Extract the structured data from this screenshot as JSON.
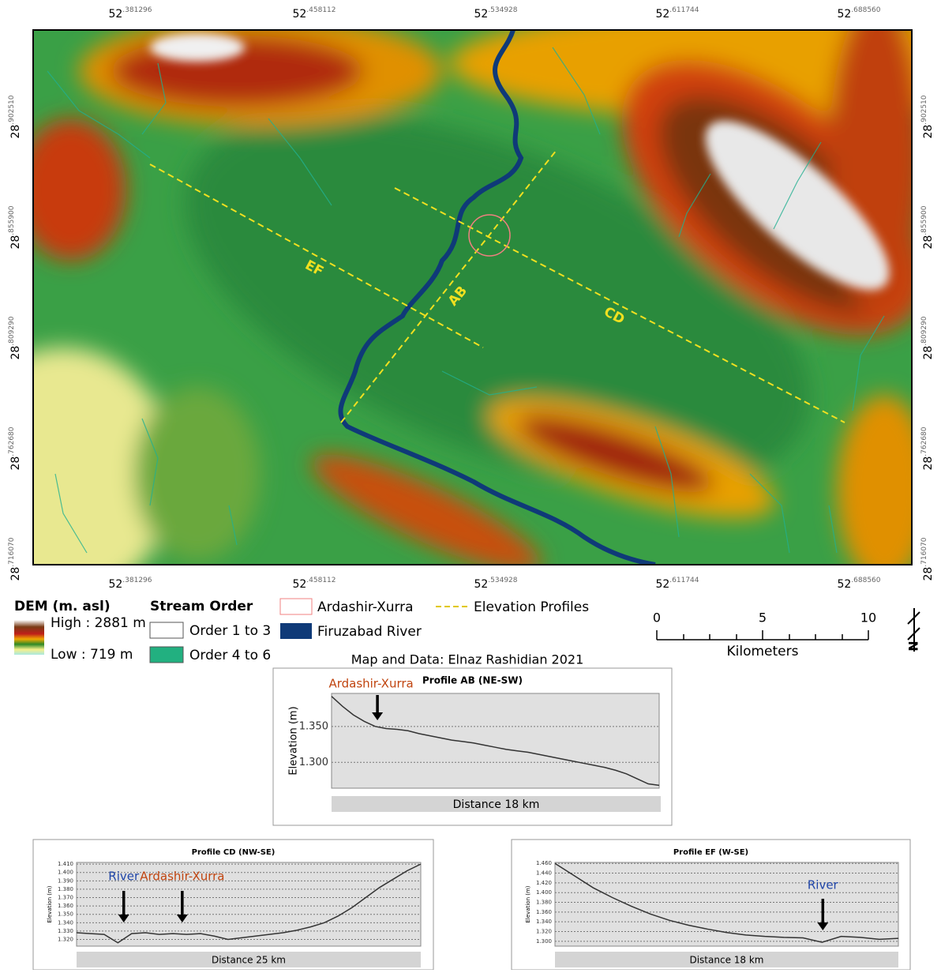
{
  "map": {
    "top_labels": [
      {
        "deg": "52",
        "frac": ".381296"
      },
      {
        "deg": "52",
        "frac": ".458112"
      },
      {
        "deg": "52",
        "frac": ".534928"
      },
      {
        "deg": "52",
        "frac": ".611744"
      },
      {
        "deg": "52",
        "frac": ".688560"
      }
    ],
    "bottom_labels": [
      {
        "deg": "52",
        "frac": ".381296"
      },
      {
        "deg": "52",
        "frac": ".458112"
      },
      {
        "deg": "52",
        "frac": ".534928"
      },
      {
        "deg": "52",
        "frac": ".611744"
      },
      {
        "deg": "52",
        "frac": ".688560"
      }
    ],
    "left_labels": [
      {
        "deg": "28",
        "frac": ".902510"
      },
      {
        "deg": "28",
        "frac": ".855900"
      },
      {
        "deg": "28",
        "frac": ".809290"
      },
      {
        "deg": "28",
        "frac": ".762680"
      },
      {
        "deg": "28",
        "frac": ".716070"
      }
    ],
    "right_labels": [
      {
        "deg": "28",
        "frac": ".902510"
      },
      {
        "deg": "28",
        "frac": ".855900"
      },
      {
        "deg": "28",
        "frac": ".809290"
      },
      {
        "deg": "28",
        "frac": ".762680"
      },
      {
        "deg": "28",
        "frac": ".716070"
      }
    ],
    "profile_labels": [
      "EF",
      "AB",
      "CD"
    ]
  },
  "legend": {
    "dem_title": "DEM (m. asl)",
    "dem_high": "High : 2881 m",
    "dem_low": "Low : 719 m",
    "stream_title": "Stream Order",
    "stream_low": "Order 1 to 3",
    "stream_high": "Order 4 to 6",
    "site": "Ardashir-Xurra",
    "river": "Firuzabad River",
    "profiles": "Elevation Profiles"
  },
  "scale": {
    "labels": [
      "0",
      "5",
      "10"
    ],
    "unit": "Kilometers"
  },
  "north": "N",
  "credit": "Map and Data: Elnaz Rashidian 2021",
  "chart_data": [
    {
      "type": "line",
      "title": "Profile AB (NE-SW)",
      "y_label": "Elevation (m)",
      "x_label": "Distance 18 km",
      "color": "#333333",
      "annotations": [
        {
          "text": "Ardashir-Xurra",
          "color": "#c0440f"
        }
      ],
      "x": [
        0,
        0.6,
        1.2,
        1.8,
        2.4,
        3,
        3.6,
        4.2,
        4.8,
        5.4,
        6,
        6.6,
        7.2,
        7.8,
        8.4,
        9,
        9.6,
        10.2,
        10.8,
        11.4,
        12,
        12.6,
        13.2,
        13.8,
        14.4,
        15,
        15.6,
        16.2,
        16.8,
        17.4,
        18
      ],
      "values": [
        1392,
        1378,
        1366,
        1357,
        1350,
        1347,
        1346,
        1344,
        1340,
        1337,
        1334,
        1331,
        1329,
        1327,
        1324,
        1321,
        1318,
        1316,
        1314,
        1311,
        1308,
        1305,
        1302,
        1299,
        1296,
        1293,
        1289,
        1284,
        1277,
        1270,
        1268
      ],
      "xlim": [
        0,
        18
      ],
      "ylim": [
        1264,
        1396
      ],
      "yticks": [
        {
          "value": 1300,
          "label": "1.300"
        },
        {
          "value": 1350,
          "label": "1.350"
        }
      ]
    },
    {
      "type": "line",
      "title": "Profile CD (NW-SE)",
      "y_label": "Elevation (m)",
      "x_label": "Distance 25 km",
      "color": "#333333",
      "annotations": [
        {
          "text": "River",
          "color": "#1f45a8"
        },
        {
          "text": "Ardashir-Xurra",
          "color": "#c0440f"
        }
      ],
      "x": [
        0,
        1,
        2,
        3,
        4,
        5,
        6,
        7,
        8,
        9,
        10,
        11,
        12,
        13,
        14,
        15,
        16,
        17,
        18,
        19,
        20,
        21,
        22,
        23,
        24,
        25
      ],
      "values": [
        1328,
        1327,
        1326,
        1316,
        1327,
        1328,
        1326,
        1327,
        1326,
        1327,
        1324,
        1320,
        1322,
        1324,
        1326,
        1328,
        1331,
        1335,
        1340,
        1348,
        1358,
        1370,
        1382,
        1392,
        1402,
        1410
      ],
      "xlim": [
        0,
        25
      ],
      "ylim": [
        1312,
        1412
      ],
      "yticks": [
        {
          "value": 1320,
          "label": "1.320"
        },
        {
          "value": 1330,
          "label": "1.330"
        },
        {
          "value": 1340,
          "label": "1.340"
        },
        {
          "value": 1350,
          "label": "1.350"
        },
        {
          "value": 1360,
          "label": "1.360"
        },
        {
          "value": 1370,
          "label": "1.370"
        },
        {
          "value": 1380,
          "label": "1.380"
        },
        {
          "value": 1390,
          "label": "1.390"
        },
        {
          "value": 1400,
          "label": "1.400"
        },
        {
          "value": 1410,
          "label": "1.410"
        }
      ]
    },
    {
      "type": "line",
      "title": "Profile EF (W-SE)",
      "y_label": "Elevation (m)",
      "x_label": "Distance 18 km",
      "color": "#333333",
      "annotations": [
        {
          "text": "River",
          "color": "#1f45a8"
        }
      ],
      "x": [
        0,
        1,
        2,
        3,
        4,
        5,
        6,
        7,
        8,
        9,
        10,
        11,
        12,
        13,
        14,
        15,
        16,
        17,
        18
      ],
      "values": [
        1460,
        1435,
        1410,
        1390,
        1372,
        1356,
        1343,
        1333,
        1325,
        1318,
        1313,
        1310,
        1308,
        1307,
        1298,
        1310,
        1308,
        1304,
        1306
      ],
      "xlim": [
        0,
        18
      ],
      "ylim": [
        1290,
        1462
      ],
      "yticks": [
        {
          "value": 1300,
          "label": "1.300"
        },
        {
          "value": 1320,
          "label": "1.320"
        },
        {
          "value": 1340,
          "label": "1.340"
        },
        {
          "value": 1360,
          "label": "1.360"
        },
        {
          "value": 1380,
          "label": "1.380"
        },
        {
          "value": 1400,
          "label": "1.400"
        },
        {
          "value": 1420,
          "label": "1.420"
        },
        {
          "value": 1440,
          "label": "1.440"
        },
        {
          "value": 1460,
          "label": "1.460"
        }
      ]
    }
  ]
}
